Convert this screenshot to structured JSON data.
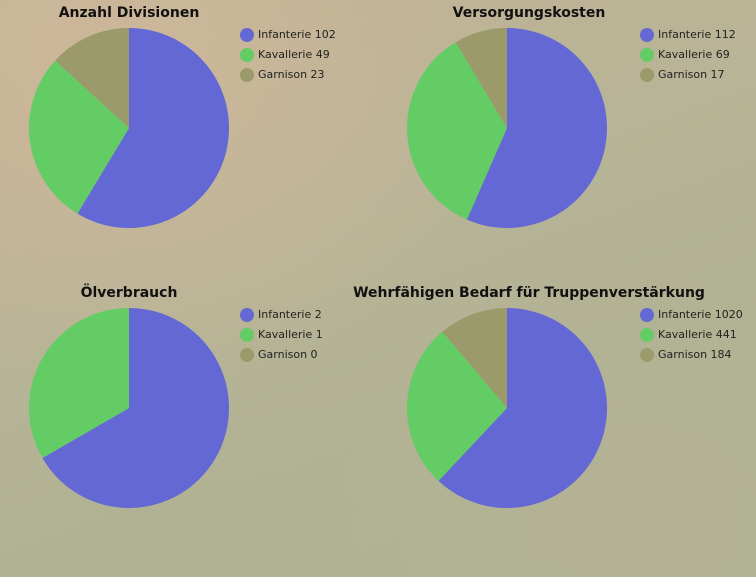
{
  "colors": {
    "infanterie": "#6468d4",
    "kavallerie": "#64cc64",
    "garnison": "#9a9a6a"
  },
  "chart_data": [
    {
      "type": "pie",
      "title": "Anzahl Divisionen",
      "series": [
        {
          "name": "Infanterie",
          "label": "Infanterie 102",
          "value": 102
        },
        {
          "name": "Kavallerie",
          "label": "Kavallerie 49",
          "value": 49
        },
        {
          "name": "Garnison",
          "label": "Garnison 23",
          "value": 23
        }
      ]
    },
    {
      "type": "pie",
      "title": "Versorgungskosten",
      "series": [
        {
          "name": "Infanterie",
          "label": "Infanterie 112",
          "value": 112
        },
        {
          "name": "Kavallerie",
          "label": "Kavallerie 69",
          "value": 69
        },
        {
          "name": "Garnison",
          "label": "Garnison 17",
          "value": 17
        }
      ]
    },
    {
      "type": "pie",
      "title": "Ölverbrauch",
      "series": [
        {
          "name": "Infanterie",
          "label": "Infanterie 2",
          "value": 2
        },
        {
          "name": "Kavallerie",
          "label": "Kavallerie 1",
          "value": 1
        },
        {
          "name": "Garnison",
          "label": "Garnison 0",
          "value": 0
        }
      ]
    },
    {
      "type": "pie",
      "title": "Wehrfähigen Bedarf für Truppenverstärkung",
      "series": [
        {
          "name": "Infanterie",
          "label": "Infanterie 1020",
          "value": 1020
        },
        {
          "name": "Kavallerie",
          "label": "Kavallerie 441",
          "value": 441
        },
        {
          "name": "Garnison",
          "label": "Garnison 184",
          "value": 184
        }
      ]
    }
  ]
}
